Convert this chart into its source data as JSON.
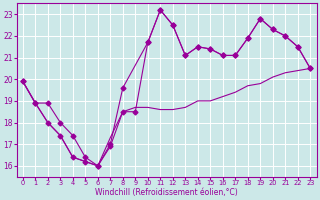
{
  "background_color": "#cce8e8",
  "grid_color": "#aacccc",
  "line_color": "#990099",
  "marker_color": "#990099",
  "xlabel": "Windchill (Refroidissement éolien,°C)",
  "xlabel_color": "#990099",
  "ylim": [
    15.5,
    23.5
  ],
  "xlim": [
    -0.5,
    23.5
  ],
  "yticks": [
    16,
    17,
    18,
    19,
    20,
    21,
    22,
    23
  ],
  "xticks": [
    0,
    1,
    2,
    3,
    4,
    5,
    6,
    7,
    8,
    9,
    10,
    11,
    12,
    13,
    14,
    15,
    16,
    17,
    18,
    19,
    20,
    21,
    22,
    23
  ],
  "series1_x": [
    0,
    1,
    2,
    3,
    4,
    5,
    6,
    7,
    8,
    9,
    10,
    11,
    12,
    13,
    14,
    15,
    16,
    17,
    18,
    19,
    20,
    21,
    22,
    23
  ],
  "series1_y": [
    19.9,
    18.9,
    18.0,
    17.4,
    16.4,
    16.2,
    16.0,
    17.3,
    18.5,
    18.7,
    18.7,
    18.6,
    18.6,
    18.7,
    19.0,
    19.0,
    19.2,
    19.4,
    19.7,
    19.8,
    20.1,
    20.3,
    20.4,
    20.5
  ],
  "series2_x": [
    0,
    1,
    2,
    3,
    4,
    5,
    6,
    7,
    8,
    9,
    10,
    11,
    12,
    13,
    14,
    15,
    16,
    17,
    18,
    19,
    20,
    21,
    22,
    23
  ],
  "series2_y": [
    19.9,
    18.9,
    18.9,
    18.0,
    17.4,
    16.4,
    16.0,
    16.9,
    18.5,
    18.5,
    21.7,
    23.2,
    22.5,
    21.1,
    21.5,
    21.4,
    21.1,
    21.1,
    21.9,
    22.8,
    22.3,
    22.0,
    21.5,
    20.5
  ],
  "series3_x": [
    0,
    1,
    2,
    3,
    4,
    5,
    6,
    7,
    8,
    10,
    11,
    12,
    13,
    14,
    15,
    16,
    17,
    18,
    19,
    20,
    21,
    22,
    23
  ],
  "series3_y": [
    19.9,
    18.9,
    18.0,
    17.4,
    16.4,
    16.2,
    16.0,
    17.0,
    19.6,
    21.7,
    23.2,
    22.5,
    21.1,
    21.5,
    21.4,
    21.1,
    21.1,
    21.9,
    22.8,
    22.3,
    22.0,
    21.5,
    20.5
  ]
}
